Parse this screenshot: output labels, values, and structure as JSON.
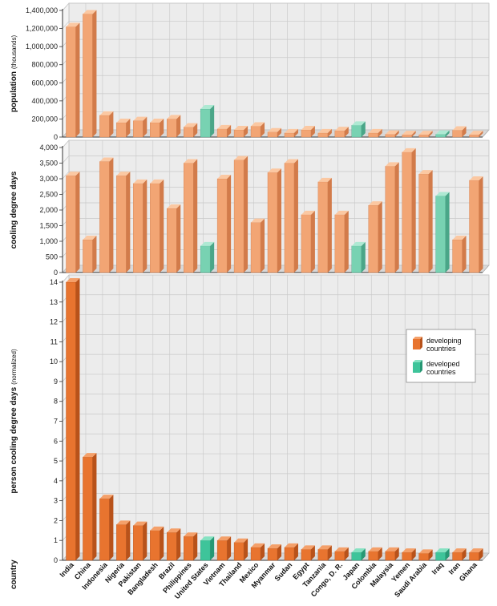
{
  "chart_data": {
    "type": "bar",
    "xlabel": "country",
    "categories": [
      "India",
      "China",
      "Indonesia",
      "Nigeria",
      "Pakistan",
      "Bangladesh",
      "Brazil",
      "Philippines",
      "United States",
      "Vietnam",
      "Thailand",
      "Mexico",
      "Myanmar",
      "Sudan",
      "Egypt",
      "Tanzania",
      "Congo, D. R.",
      "Japan",
      "Colombia",
      "Malaysia",
      "Yemen",
      "Saudi Arabia",
      "Iraq",
      "Iran",
      "Ghana"
    ],
    "group": [
      "developing",
      "developing",
      "developing",
      "developing",
      "developing",
      "developing",
      "developing",
      "developing",
      "developed",
      "developing",
      "developing",
      "developing",
      "developing",
      "developing",
      "developing",
      "developing",
      "developing",
      "developed",
      "developing",
      "developing",
      "developing",
      "developing",
      "developed",
      "developing",
      "developing"
    ],
    "panels": [
      {
        "ylabel": "population",
        "ylabel_sub": "(thousands)",
        "ylim": [
          0,
          1400000
        ],
        "ticks": [
          0,
          200000,
          400000,
          600000,
          800000,
          1000000,
          1200000,
          1400000
        ],
        "tick_labels": [
          "0",
          "200,000",
          "400,000",
          "600,000",
          "800,000",
          "1,000,000",
          "1,200,000",
          "1,400,000"
        ],
        "values": [
          1220000,
          1360000,
          240000,
          160000,
          180000,
          160000,
          200000,
          110000,
          310000,
          90000,
          80000,
          120000,
          55000,
          45000,
          80000,
          45000,
          70000,
          130000,
          45000,
          30000,
          25000,
          25000,
          30000,
          75000,
          25000
        ]
      },
      {
        "ylabel": "cooling degree days",
        "ylabel_sub": "",
        "ylim": [
          0,
          4000
        ],
        "ticks": [
          0,
          500,
          1000,
          1500,
          2000,
          2500,
          3000,
          3500,
          4000
        ],
        "tick_labels": [
          "0",
          "500",
          "1,000",
          "1,500",
          "2,000",
          "2,500",
          "3,000",
          "3,500",
          "4,000"
        ],
        "values": [
          3100,
          1050,
          3550,
          3100,
          2850,
          2850,
          2050,
          3500,
          850,
          3000,
          3600,
          1600,
          3200,
          3500,
          1850,
          2900,
          1850,
          850,
          2150,
          3400,
          3850,
          3150,
          2450,
          1050,
          2950
        ]
      },
      {
        "ylabel": "person cooling degree days",
        "ylabel_sub": "(normalized)",
        "ylim": [
          0,
          14
        ],
        "ticks": [
          0,
          1,
          2,
          3,
          4,
          5,
          6,
          7,
          8,
          9,
          10,
          11,
          12,
          13,
          14
        ],
        "tick_labels": [
          "0",
          "1",
          "2",
          "3",
          "4",
          "5",
          "6",
          "7",
          "8",
          "9",
          "10",
          "11",
          "12",
          "13",
          "14"
        ],
        "values": [
          14.0,
          5.2,
          3.1,
          1.8,
          1.75,
          1.5,
          1.4,
          1.2,
          1.0,
          1.0,
          0.9,
          0.65,
          0.6,
          0.65,
          0.55,
          0.55,
          0.45,
          0.4,
          0.45,
          0.45,
          0.4,
          0.35,
          0.4,
          0.4,
          0.4
        ]
      }
    ],
    "legend": {
      "placement": "right",
      "items": [
        {
          "key": "developing",
          "label_lines": [
            "developing",
            "countries"
          ]
        },
        {
          "key": "developed",
          "label_lines": [
            "developed",
            "countries"
          ]
        }
      ]
    },
    "colors": {
      "light": {
        "developing": {
          "front": "#f2a574",
          "side": "#d27b4a",
          "top": "#fbc8a2"
        },
        "developed": {
          "front": "#78d2b2",
          "side": "#4aa688",
          "top": "#aee9d3"
        }
      },
      "dark": {
        "developing": {
          "front": "#e8742f",
          "side": "#b8521a",
          "top": "#f4a06a"
        },
        "developed": {
          "front": "#3ec49a",
          "side": "#269874",
          "top": "#86e2c2"
        }
      },
      "grid": "#c8c8c8",
      "wall": "#ececec",
      "floor": "#d8d8d8"
    }
  }
}
